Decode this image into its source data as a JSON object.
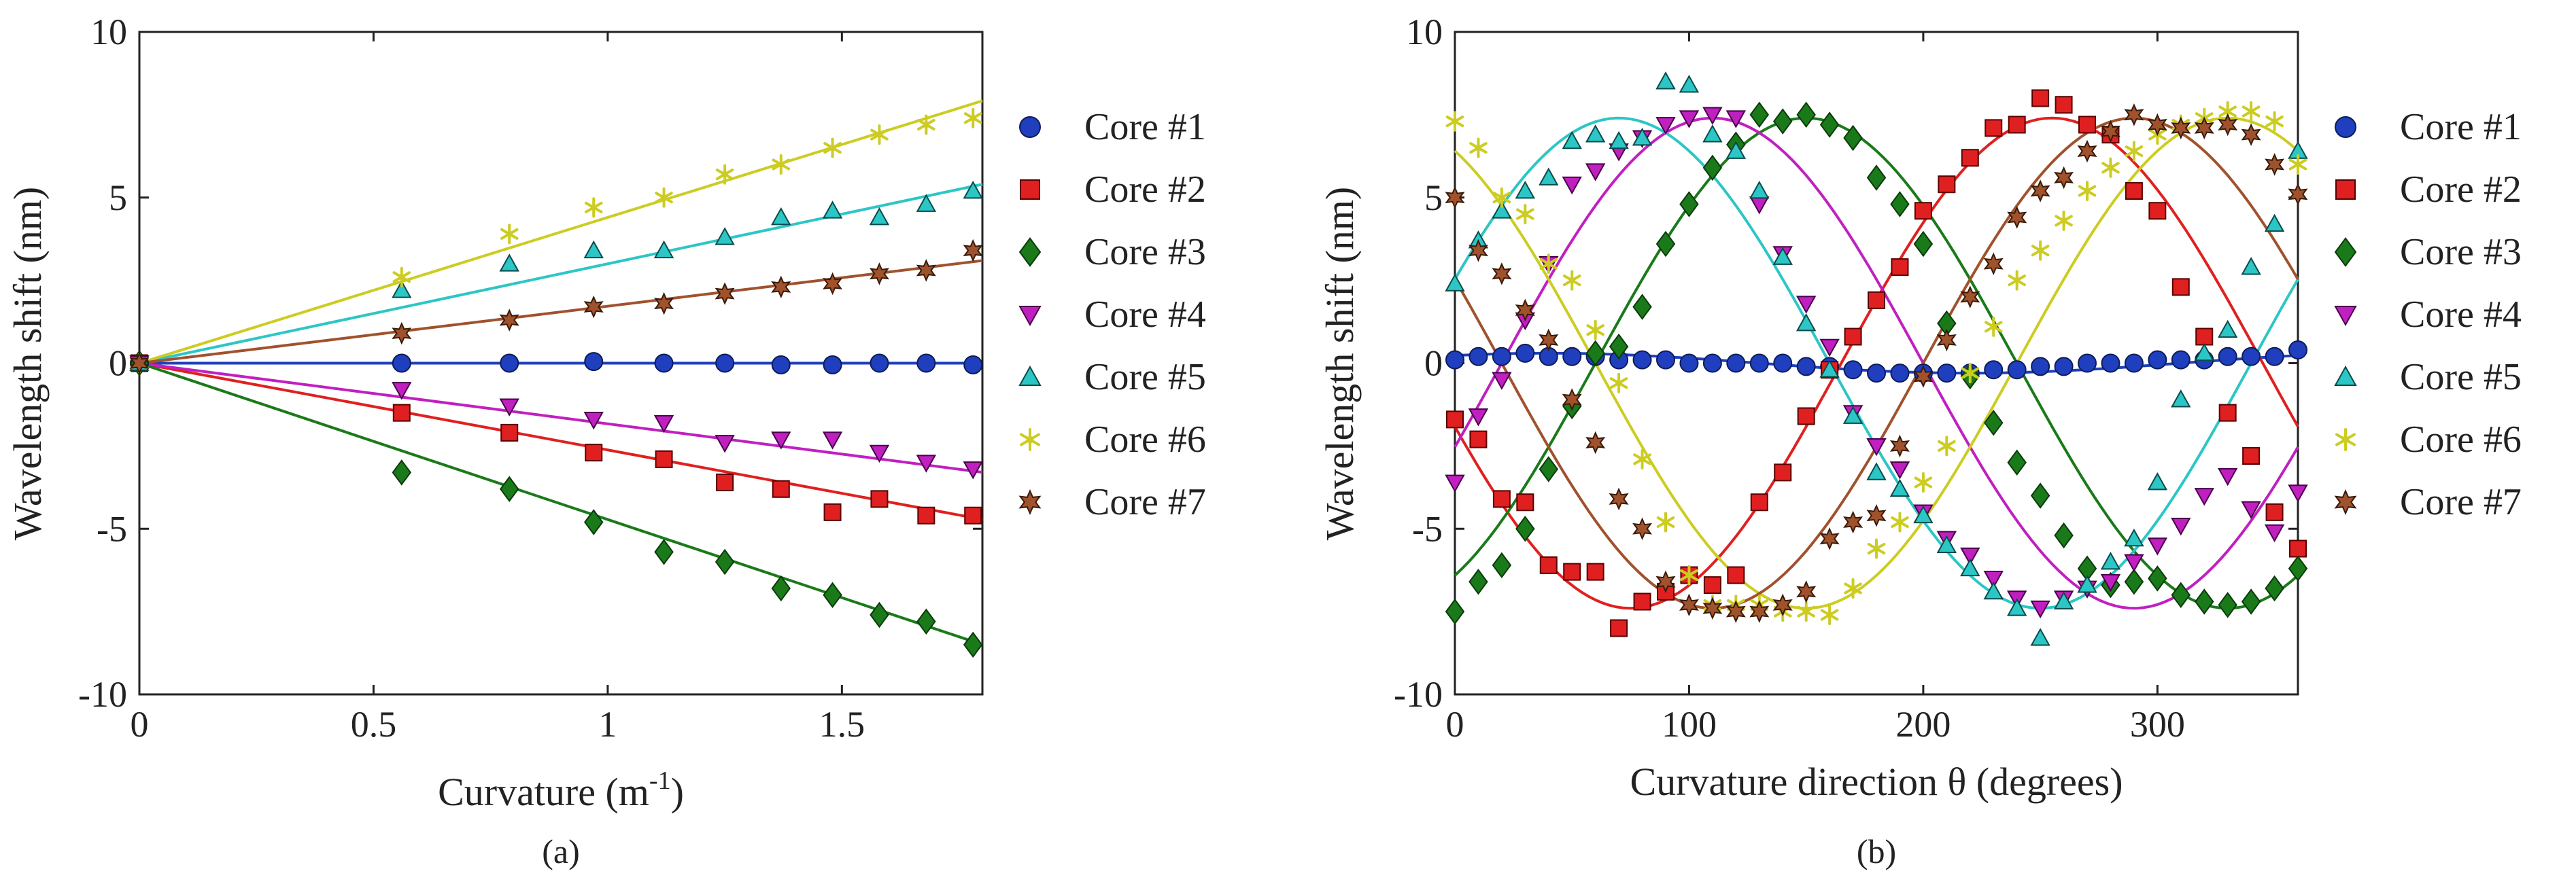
{
  "colors": {
    "core1": "#1f3fbf",
    "core2": "#e02020",
    "core3": "#1a7a1a",
    "core4": "#c020c0",
    "core5": "#2cc6c6",
    "core6": "#cccc22",
    "core7": "#a0522d"
  },
  "legend_labels": [
    "Core #1",
    "Core #2",
    "Core #3",
    "Core #4",
    "Core #5",
    "Core #6",
    "Core #7"
  ],
  "chart_data": [
    {
      "type": "scatter",
      "panel_label": "(a)",
      "xlabel_main": "Curvature (m",
      "xlabel_sup": "-1",
      "xlabel_tail": ")",
      "ylabel": "Wavelength shift (nm)",
      "xlim": [
        0,
        1.8
      ],
      "ylim": [
        -10,
        10
      ],
      "xticks": [
        0,
        0.5,
        1,
        1.5
      ],
      "xtick_labels": [
        "0",
        "0.5",
        "1",
        "1.5"
      ],
      "yticks": [
        -10,
        -5,
        0,
        5,
        10
      ],
      "ytick_labels": [
        "-10",
        "-5",
        "0",
        "5",
        "10"
      ],
      "legend_position": "right",
      "fit": "linear through origin",
      "x": [
        0,
        0.56,
        0.79,
        0.97,
        1.12,
        1.25,
        1.37,
        1.48,
        1.58,
        1.68,
        1.78
      ],
      "series": [
        {
          "name": "Core #1",
          "slope": 0,
          "values": [
            0,
            0,
            0,
            0.05,
            0,
            0,
            -0.05,
            -0.05,
            0,
            0,
            -0.05
          ]
        },
        {
          "name": "Core #2",
          "slope": -2.62,
          "values": [
            0,
            -1.5,
            -2.1,
            -2.7,
            -2.9,
            -3.6,
            -3.8,
            -4.5,
            -4.1,
            -4.6,
            -4.6
          ]
        },
        {
          "name": "Core #3",
          "slope": -4.72,
          "values": [
            0,
            -3.3,
            -3.8,
            -4.8,
            -5.7,
            -6.0,
            -6.8,
            -7.0,
            -7.6,
            -7.8,
            -8.5
          ]
        },
        {
          "name": "Core #4",
          "slope": -1.83,
          "values": [
            0,
            -0.8,
            -1.3,
            -1.7,
            -1.8,
            -2.4,
            -2.3,
            -2.3,
            -2.7,
            -3.0,
            -3.2
          ]
        },
        {
          "name": "Core #5",
          "slope": 3.0,
          "values": [
            0,
            2.2,
            3.0,
            3.4,
            3.4,
            3.8,
            4.4,
            4.6,
            4.4,
            4.8,
            5.2
          ]
        },
        {
          "name": "Core #6",
          "slope": 4.4,
          "values": [
            0,
            2.6,
            3.9,
            4.7,
            5.0,
            5.7,
            6.0,
            6.5,
            6.9,
            7.2,
            7.4
          ]
        },
        {
          "name": "Core #7",
          "slope": 1.72,
          "values": [
            0,
            0.9,
            1.3,
            1.7,
            1.8,
            2.1,
            2.3,
            2.4,
            2.7,
            2.8,
            3.4
          ]
        }
      ]
    },
    {
      "type": "scatter",
      "panel_label": "(b)",
      "xlabel": "Curvature direction θ (degrees)",
      "ylabel": "Wavelength shift (nm)",
      "xlim": [
        0,
        360
      ],
      "ylim": [
        -10,
        10
      ],
      "xticks": [
        0,
        100,
        200,
        300
      ],
      "xtick_labels": [
        "0",
        "100",
        "200",
        "300"
      ],
      "yticks": [
        -10,
        -5,
        0,
        5,
        10
      ],
      "ytick_labels": [
        "-10",
        "-5",
        "0",
        "5",
        "10"
      ],
      "legend_position": "right",
      "fit": "sinusoid A*cos(theta - phi)",
      "x": [
        0,
        10,
        20,
        30,
        40,
        50,
        60,
        70,
        80,
        90,
        100,
        110,
        120,
        130,
        140,
        150,
        160,
        170,
        180,
        190,
        200,
        210,
        220,
        230,
        240,
        250,
        260,
        270,
        280,
        290,
        300,
        310,
        320,
        330,
        340,
        350,
        360
      ],
      "series": [
        {
          "name": "Core #1",
          "amplitude": 0.3,
          "phase_deg": 40,
          "values": [
            0.1,
            0.2,
            0.2,
            0.3,
            0.2,
            0.2,
            0.2,
            0.1,
            0.1,
            0.1,
            0,
            0,
            0,
            0,
            0,
            -0.1,
            -0.1,
            -0.2,
            -0.3,
            -0.3,
            -0.3,
            -0.3,
            -0.3,
            -0.2,
            -0.2,
            -0.1,
            -0.1,
            0,
            0,
            0,
            0.1,
            0.1,
            0.1,
            0.2,
            0.2,
            0.2,
            0.4
          ]
        },
        {
          "name": "Core #2",
          "amplitude": 7.4,
          "phase_deg": 255,
          "values": [
            -1.7,
            -2.3,
            -4.1,
            -4.2,
            -6.1,
            -6.3,
            -6.3,
            -8.0,
            -7.2,
            -6.9,
            -6.4,
            -6.7,
            -6.4,
            -4.2,
            -3.3,
            -1.6,
            -0.2,
            0.8,
            1.9,
            2.9,
            4.6,
            5.4,
            6.2,
            7.1,
            7.2,
            8.0,
            7.8,
            7.2,
            6.9,
            5.2,
            4.6,
            2.3,
            0.8,
            -1.5,
            -2.8,
            -4.5,
            -5.6
          ]
        },
        {
          "name": "Core #3",
          "amplitude": 7.4,
          "phase_deg": 150,
          "values": [
            -7.5,
            -6.6,
            -6.1,
            -5.0,
            -3.2,
            -1.3,
            0.3,
            0.5,
            1.7,
            3.6,
            4.8,
            5.9,
            6.6,
            7.5,
            7.3,
            7.5,
            7.2,
            6.8,
            5.6,
            4.8,
            3.6,
            1.2,
            -0.4,
            -1.8,
            -3.0,
            -4.0,
            -5.2,
            -6.2,
            -6.7,
            -6.6,
            -6.5,
            -7.0,
            -7.2,
            -7.3,
            -7.2,
            -6.8,
            -6.2
          ]
        },
        {
          "name": "Core #4",
          "amplitude": 7.4,
          "phase_deg": 110,
          "values": [
            -3.6,
            -1.6,
            -0.5,
            1.3,
            3.0,
            5.4,
            5.8,
            6.4,
            6.8,
            7.2,
            7.4,
            7.5,
            7.4,
            4.8,
            3.3,
            1.8,
            0.5,
            -1.5,
            -2.5,
            -3.2,
            -4.5,
            -5.3,
            -5.8,
            -6.5,
            -7.1,
            -7.4,
            -7.1,
            -6.8,
            -6.6,
            -6.0,
            -5.5,
            -4.9,
            -4.0,
            -3.4,
            -4.4,
            -5.1,
            -3.9
          ]
        },
        {
          "name": "Core #5",
          "amplitude": 7.4,
          "phase_deg": 70,
          "values": [
            2.4,
            3.7,
            4.6,
            5.2,
            5.6,
            6.7,
            6.9,
            6.7,
            6.8,
            8.5,
            8.4,
            6.9,
            6.4,
            5.2,
            3.2,
            1.2,
            -0.2,
            -1.6,
            -3.3,
            -3.8,
            -4.6,
            -5.5,
            -6.2,
            -6.9,
            -7.4,
            -8.3,
            -7.2,
            -6.7,
            -6.0,
            -5.3,
            -3.6,
            -1.1,
            0.3,
            1.0,
            2.9,
            4.2,
            6.4
          ]
        },
        {
          "name": "Core #6",
          "amplitude": 7.4,
          "phase_deg": 330,
          "values": [
            7.3,
            6.5,
            5.0,
            4.5,
            3.0,
            2.5,
            1.0,
            -0.6,
            -2.9,
            -4.8,
            -6.4,
            -7.3,
            -7.3,
            -7.3,
            -7.5,
            -7.5,
            -7.6,
            -6.8,
            -5.6,
            -4.8,
            -3.6,
            -2.5,
            -0.3,
            1.1,
            2.5,
            3.4,
            4.3,
            5.2,
            5.9,
            6.4,
            6.9,
            7.2,
            7.4,
            7.6,
            7.6,
            7.3,
            6.0
          ]
        },
        {
          "name": "Core #7",
          "amplitude": 7.4,
          "phase_deg": 290,
          "values": [
            5.0,
            3.4,
            2.7,
            1.6,
            0.7,
            -1.1,
            -2.4,
            -4.1,
            -5.0,
            -6.6,
            -7.3,
            -7.4,
            -7.5,
            -7.5,
            -7.3,
            -6.9,
            -5.3,
            -4.8,
            -4.6,
            -2.5,
            -0.4,
            0.7,
            2.0,
            3.0,
            4.4,
            5.2,
            5.6,
            6.4,
            7.0,
            7.5,
            7.2,
            7.1,
            7.1,
            7.2,
            6.9,
            6.0,
            5.1
          ]
        }
      ]
    }
  ]
}
